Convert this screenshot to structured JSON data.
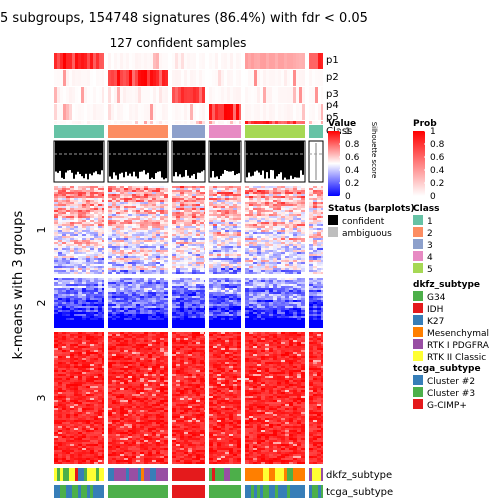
{
  "chart_data": {
    "type": "heatmap",
    "title": "5 subgroups, 154748 signatures (86.4%) with fdr < 0.05",
    "subtitle": "127 confident samples",
    "row_split_title": "k-means with 3 groups",
    "row_groups": [
      "1",
      "2",
      "3"
    ],
    "column_groups": [
      1,
      2,
      3,
      4,
      5,
      1
    ],
    "top_annotations": [
      "p1",
      "p2",
      "p3",
      "p4",
      "p5",
      "Class"
    ],
    "barplot_axis": {
      "label": "Silhouette score",
      "ticks": [
        "0",
        "0.5",
        "1"
      ]
    },
    "bottom_annotations": [
      "dkfz_subtype",
      "tcga_subtype"
    ],
    "legends": [
      {
        "title": "Value",
        "type": "continuous",
        "ticks": [
          "1",
          "0.8",
          "0.6",
          "0.4",
          "0.2",
          "0"
        ],
        "colors": [
          "#ff0000",
          "#ffffff",
          "#0000ff"
        ]
      },
      {
        "title": "Prob",
        "type": "continuous",
        "ticks": [
          "1",
          "0.8",
          "0.6",
          "0.4",
          "0.2",
          "0"
        ],
        "colors": [
          "#ff0000",
          "#ffffff"
        ]
      },
      {
        "title": "Status (barplots)",
        "type": "discrete",
        "items": [
          {
            "label": "confident",
            "color": "#000000"
          },
          {
            "label": "ambiguous",
            "color": "#bebebe"
          }
        ]
      },
      {
        "title": "Class",
        "type": "discrete",
        "items": [
          {
            "label": "1",
            "color": "#66c2a5"
          },
          {
            "label": "2",
            "color": "#fc8d62"
          },
          {
            "label": "3",
            "color": "#8da0cb"
          },
          {
            "label": "4",
            "color": "#e78ac3"
          },
          {
            "label": "5",
            "color": "#a6d854"
          }
        ]
      },
      {
        "title": "dkfz_subtype",
        "type": "discrete",
        "items": [
          {
            "label": "G34",
            "color": "#4daf4a"
          },
          {
            "label": "IDH",
            "color": "#e41a1c"
          },
          {
            "label": "K27",
            "color": "#377eb8"
          },
          {
            "label": "Mesenchymal",
            "color": "#ff7f00"
          },
          {
            "label": "RTK I PDGFRA",
            "color": "#984ea3"
          },
          {
            "label": "RTK II Classic",
            "color": "#ffff33"
          }
        ]
      },
      {
        "title": "tcga_subtype",
        "type": "discrete",
        "items": [
          {
            "label": "Cluster #2",
            "color": "#377eb8"
          },
          {
            "label": "Cluster #3",
            "color": "#4daf4a"
          },
          {
            "label": "G-CIMP+",
            "color": "#e41a1c"
          }
        ]
      }
    ]
  }
}
